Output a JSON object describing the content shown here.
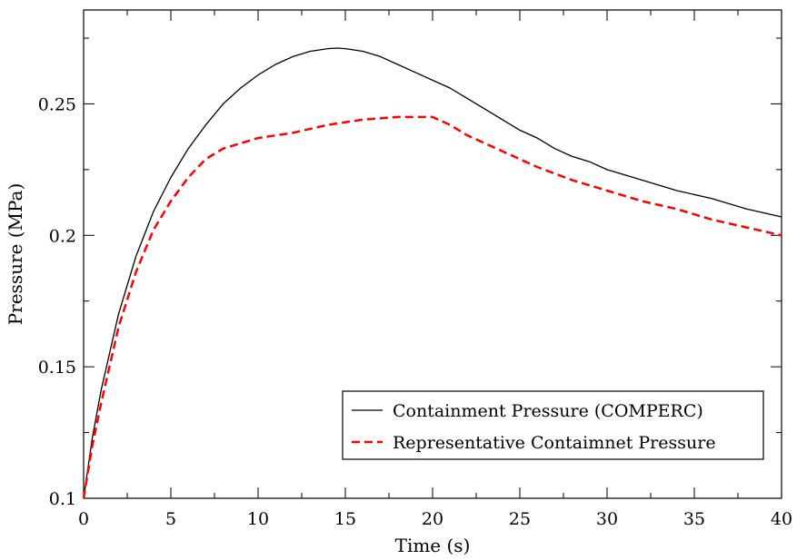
{
  "chart_data": {
    "type": "line",
    "xlabel": "Time (s)",
    "ylabel": "Pressure (MPa)",
    "xlim": [
      0,
      40
    ],
    "ylim": [
      0.1,
      0.2857
    ],
    "x_ticks": [
      0,
      5,
      10,
      15,
      20,
      25,
      30,
      35,
      40
    ],
    "x_tick_labels": [
      "0",
      "5",
      "10",
      "15",
      "20",
      "25",
      "30",
      "35",
      "40"
    ],
    "y_ticks": [
      0.1,
      0.15,
      0.2,
      0.25
    ],
    "y_tick_labels": [
      "0.1",
      "0.15",
      "0.2",
      "0.25"
    ],
    "grid": false,
    "legend_position": "bottom-right",
    "series": [
      {
        "name": "Containment Pressure (COMPERC)",
        "color": "#000000",
        "style": "solid",
        "points": [
          [
            0,
            0.1
          ],
          [
            0.5,
            0.123
          ],
          [
            1,
            0.141
          ],
          [
            2,
            0.17
          ],
          [
            3,
            0.192
          ],
          [
            4,
            0.209
          ],
          [
            5,
            0.222
          ],
          [
            6,
            0.233
          ],
          [
            7,
            0.242
          ],
          [
            8,
            0.25
          ],
          [
            9,
            0.256
          ],
          [
            10,
            0.261
          ],
          [
            11,
            0.265
          ],
          [
            12,
            0.268
          ],
          [
            13,
            0.27
          ],
          [
            14,
            0.271
          ],
          [
            14.5,
            0.2712
          ],
          [
            15,
            0.271
          ],
          [
            16,
            0.27
          ],
          [
            17,
            0.268
          ],
          [
            18,
            0.265
          ],
          [
            19,
            0.262
          ],
          [
            20,
            0.259
          ],
          [
            21,
            0.256
          ],
          [
            22,
            0.252
          ],
          [
            23,
            0.248
          ],
          [
            24,
            0.244
          ],
          [
            25,
            0.24
          ],
          [
            26,
            0.237
          ],
          [
            27,
            0.233
          ],
          [
            28,
            0.23
          ],
          [
            29,
            0.228
          ],
          [
            30,
            0.225
          ],
          [
            32,
            0.221
          ],
          [
            34,
            0.217
          ],
          [
            36,
            0.214
          ],
          [
            38,
            0.21
          ],
          [
            40,
            0.207
          ]
        ]
      },
      {
        "name": "Representative Containmnet Pressure",
        "color": "#ff0000",
        "style": "dashed",
        "points": [
          [
            0,
            0.1
          ],
          [
            0.5,
            0.12
          ],
          [
            1,
            0.136
          ],
          [
            2,
            0.165
          ],
          [
            3,
            0.186
          ],
          [
            4,
            0.202
          ],
          [
            5,
            0.213
          ],
          [
            6,
            0.222
          ],
          [
            7,
            0.229
          ],
          [
            8,
            0.233
          ],
          [
            9,
            0.235
          ],
          [
            10,
            0.237
          ],
          [
            12,
            0.239
          ],
          [
            14,
            0.242
          ],
          [
            16,
            0.244
          ],
          [
            18,
            0.245
          ],
          [
            20,
            0.245
          ],
          [
            21,
            0.242
          ],
          [
            22,
            0.238
          ],
          [
            24,
            0.232
          ],
          [
            26,
            0.226
          ],
          [
            28,
            0.221
          ],
          [
            30,
            0.217
          ],
          [
            32,
            0.213
          ],
          [
            34,
            0.21
          ],
          [
            36,
            0.206
          ],
          [
            38,
            0.203
          ],
          [
            40,
            0.2
          ]
        ]
      }
    ],
    "legend_entries": [
      "Containment Pressure (COMPERC)",
      "Representative Contaimnet Pressure"
    ]
  }
}
